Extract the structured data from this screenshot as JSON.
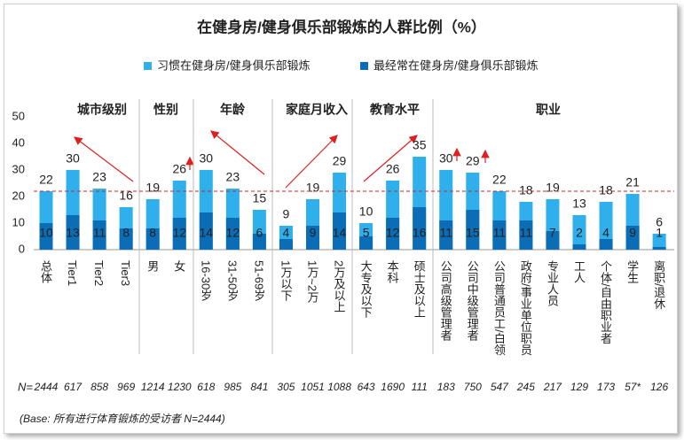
{
  "chart_data": {
    "type": "bar",
    "title": "在健身房/健身俱乐部锻炼的人群比例（%）",
    "categories": [
      "总体",
      "Tier1",
      "Tier2",
      "Tier3",
      "男",
      "女",
      "16-30岁",
      "31-50岁",
      "51-69岁",
      "1万以下",
      "1万~2万",
      "2万及以上",
      "大专及以下",
      "本科",
      "硕士及以上",
      "公司高级管理者",
      "公司中级管理者",
      "公司普通员工/白领",
      "政府/事业单位职员",
      "专业人员",
      "工人",
      "个体/自由职业者",
      "学生",
      "离职/退休"
    ],
    "series": [
      {
        "name": "习惯在健身房/健身俱乐部锻炼",
        "color": "#2fb0ec",
        "values": [
          22,
          30,
          23,
          16,
          19,
          26,
          30,
          23,
          15,
          9,
          19,
          29,
          10,
          26,
          35,
          30,
          29,
          22,
          18,
          19,
          13,
          18,
          21,
          6
        ]
      },
      {
        "name": "最经常在健身房/健身俱乐部锻炼",
        "color": "#0a6db5",
        "values": [
          10,
          13,
          11,
          8,
          8,
          12,
          14,
          12,
          6,
          4,
          9,
          14,
          5,
          12,
          16,
          11,
          15,
          11,
          11,
          7,
          2,
          4,
          9,
          1
        ]
      }
    ],
    "groups": [
      "城市级别",
      "性别",
      "年龄",
      "家庭月收入",
      "教育水平",
      "职业"
    ],
    "ylim": [
      0,
      50
    ],
    "yticks": [
      0,
      10,
      20,
      30,
      40,
      50
    ],
    "n_label": "N=",
    "n": [
      2444,
      617,
      858,
      969,
      1214,
      1230,
      618,
      985,
      841,
      305,
      1051,
      1088,
      643,
      1690,
      111,
      183,
      750,
      547,
      245,
      217,
      129,
      173,
      "57*",
      126
    ],
    "note": "(Base: 所有进行体育锻炼的受访者 N=2444)"
  }
}
